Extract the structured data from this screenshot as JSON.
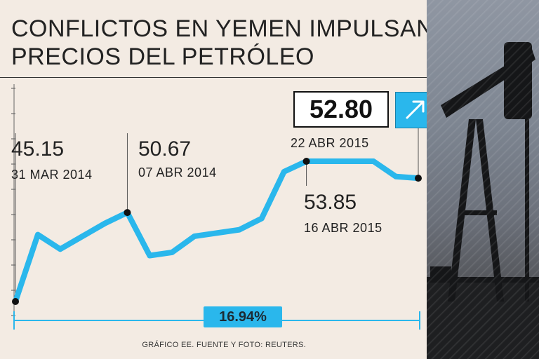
{
  "title": {
    "line1": "CONFLICTOS EN YEMEN IMPULSAN",
    "line2": "PRECIOS DEL PETRÓLEO"
  },
  "colors": {
    "accent": "#2ab7ec",
    "background": "#f3ebe3",
    "text": "#222222"
  },
  "icons": {
    "trend": "arrow-up-right-icon"
  },
  "current": {
    "value": "52.80",
    "date": "22 ABR 2015"
  },
  "change": {
    "percent": "16.94%"
  },
  "source": "GRÁFICO EE. FUENTE Y FOTO: REUTERS.",
  "chart_data": {
    "type": "line",
    "title": "CONFLICTOS EN YEMEN IMPULSAN PRECIOS DEL PETRÓLEO",
    "xlabel": "",
    "ylabel": "",
    "grid": false,
    "ylim": [
      44,
      57
    ],
    "series": [
      {
        "values": [
          45.15,
          49.3,
          48.4,
          49.2,
          50.0,
          50.67,
          48.0,
          48.2,
          49.2,
          49.4,
          49.6,
          50.3,
          53.2,
          53.85,
          53.85,
          53.85,
          53.85,
          52.9,
          52.8
        ]
      }
    ],
    "annotations": [
      {
        "label": "45.15",
        "date": "31 MAR 2014",
        "index": 0
      },
      {
        "label": "50.67",
        "date": "07 ABR 2014",
        "index": 5
      },
      {
        "label": "53.85",
        "date": "16 ABR 2015",
        "index": 13
      },
      {
        "label": "52.80",
        "date": "22 ABR 2015",
        "index": 18
      }
    ]
  }
}
